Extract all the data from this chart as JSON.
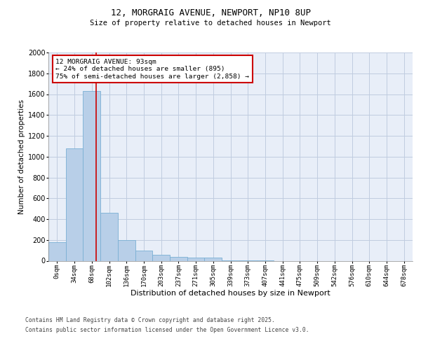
{
  "title_line1": "12, MORGRAIG AVENUE, NEWPORT, NP10 8UP",
  "title_line2": "Size of property relative to detached houses in Newport",
  "xlabel": "Distribution of detached houses by size in Newport",
  "ylabel": "Number of detached properties",
  "bar_color": "#b8cfe8",
  "bar_edge_color": "#7aafd4",
  "background_color": "#e8eef8",
  "grid_color": "#c0cce0",
  "categories": [
    "0sqm",
    "34sqm",
    "68sqm",
    "102sqm",
    "136sqm",
    "170sqm",
    "203sqm",
    "237sqm",
    "271sqm",
    "305sqm",
    "339sqm",
    "373sqm",
    "407sqm",
    "441sqm",
    "475sqm",
    "509sqm",
    "542sqm",
    "576sqm",
    "610sqm",
    "644sqm",
    "678sqm"
  ],
  "values": [
    175,
    1080,
    1630,
    460,
    200,
    100,
    55,
    40,
    30,
    30,
    5,
    2,
    1,
    0,
    0,
    0,
    0,
    0,
    0,
    0,
    0
  ],
  "ylim": [
    0,
    2000
  ],
  "yticks": [
    0,
    200,
    400,
    600,
    800,
    1000,
    1200,
    1400,
    1600,
    1800,
    2000
  ],
  "annotation_text": "12 MORGRAIG AVENUE: 93sqm\n← 24% of detached houses are smaller (895)\n75% of semi-detached houses are larger (2,858) →",
  "annotation_box_color": "#ffffff",
  "annotation_box_edge": "#cc0000",
  "property_line_color": "#cc0000",
  "footer_line1": "Contains HM Land Registry data © Crown copyright and database right 2025.",
  "footer_line2": "Contains public sector information licensed under the Open Government Licence v3.0."
}
